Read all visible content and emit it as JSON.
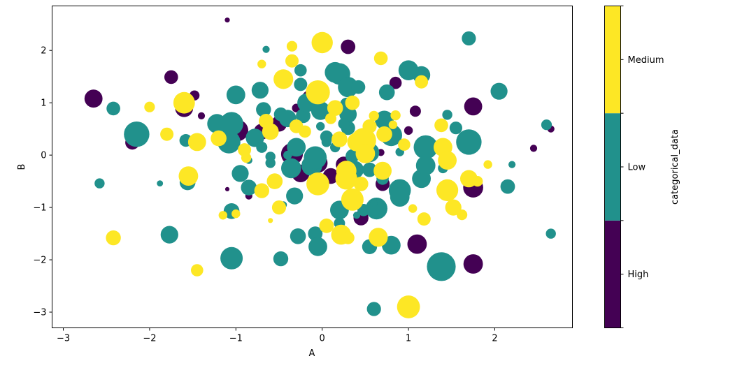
{
  "chart_data": {
    "type": "scatter",
    "title": "",
    "xlabel": "A",
    "ylabel": "B",
    "xlim": [
      -3.13,
      2.9
    ],
    "ylim": [
      -3.3,
      2.85
    ],
    "xticks": [
      -3,
      -2,
      -1,
      0,
      1,
      2
    ],
    "yticks": [
      -3,
      -2,
      -1,
      0,
      1,
      2
    ],
    "tick_labels": {
      "x": [
        "−3",
        "−2",
        "−1",
        "0",
        "1",
        "2"
      ],
      "y": [
        "−3",
        "−2",
        "−1",
        "0",
        "1",
        "2"
      ]
    },
    "grid": false,
    "colorbar": {
      "label": "categorical_data",
      "categories": [
        "High",
        "Low",
        "Medium"
      ],
      "colors": [
        "#440154",
        "#21918c",
        "#fde725"
      ]
    },
    "point_fields": [
      "x",
      "y",
      "category",
      "size"
    ],
    "size_note": "marker area, relative units",
    "points": [
      [
        -2.65,
        1.08,
        0,
        260
      ],
      [
        -2.2,
        0.24,
        0,
        160
      ],
      [
        -1.75,
        1.49,
        0,
        150
      ],
      [
        -1.6,
        0.9,
        0,
        260
      ],
      [
        -1.4,
        0.75,
        0,
        40
      ],
      [
        -1.1,
        2.58,
        0,
        20
      ],
      [
        -1.1,
        -0.65,
        0,
        15
      ],
      [
        -0.98,
        0.47,
        0,
        360
      ],
      [
        -0.7,
        0.45,
        0,
        200
      ],
      [
        -0.5,
        0.6,
        0,
        200
      ],
      [
        -0.35,
        0.02,
        0,
        380
      ],
      [
        -0.25,
        -0.35,
        0,
        250
      ],
      [
        -0.15,
        1.1,
        0,
        160
      ],
      [
        -0.05,
        -0.15,
        0,
        300
      ],
      [
        0.1,
        -0.4,
        0,
        200
      ],
      [
        0.3,
        2.07,
        0,
        170
      ],
      [
        0.35,
        -0.3,
        0,
        300
      ],
      [
        0.45,
        -1.2,
        0,
        180
      ],
      [
        0.5,
        0.25,
        0,
        120
      ],
      [
        0.7,
        -0.55,
        0,
        160
      ],
      [
        0.85,
        1.38,
        0,
        120
      ],
      [
        1.0,
        1.6,
        0,
        200
      ],
      [
        1.0,
        0.47,
        0,
        60
      ],
      [
        1.08,
        0.84,
        0,
        100
      ],
      [
        1.1,
        -1.7,
        0,
        300
      ],
      [
        1.75,
        0.93,
        0,
        260
      ],
      [
        1.75,
        -0.62,
        0,
        320
      ],
      [
        1.75,
        -2.08,
        0,
        300
      ],
      [
        2.45,
        0.13,
        0,
        40
      ],
      [
        2.65,
        0.5,
        0,
        40
      ],
      [
        -1.48,
        1.14,
        0,
        80
      ],
      [
        -0.3,
        0.9,
        0,
        60
      ],
      [
        0.25,
        -0.18,
        0,
        200
      ],
      [
        -0.85,
        -0.78,
        0,
        40
      ],
      [
        0.68,
        0.05,
        0,
        40
      ],
      [
        -2.42,
        0.89,
        1,
        150
      ],
      [
        -2.58,
        -0.54,
        1,
        80
      ],
      [
        -2.15,
        0.4,
        1,
        520
      ],
      [
        -1.6,
        1.03,
        1,
        240
      ],
      [
        -1.58,
        0.28,
        1,
        130
      ],
      [
        -1.56,
        -0.52,
        1,
        200
      ],
      [
        -1.77,
        -1.52,
        1,
        250
      ],
      [
        -1.88,
        -0.54,
        1,
        30
      ],
      [
        -1.22,
        0.6,
        1,
        300
      ],
      [
        -1.05,
        0.6,
        1,
        440
      ],
      [
        -1.08,
        0.25,
        1,
        420
      ],
      [
        -1.0,
        1.15,
        1,
        280
      ],
      [
        -0.95,
        -0.35,
        1,
        230
      ],
      [
        -1.05,
        -1.07,
        1,
        200
      ],
      [
        -1.05,
        -1.97,
        1,
        400
      ],
      [
        -0.85,
        -0.62,
        1,
        200
      ],
      [
        -0.72,
        1.24,
        1,
        230
      ],
      [
        -0.78,
        0.33,
        1,
        270
      ],
      [
        -0.68,
        0.87,
        1,
        180
      ],
      [
        -0.65,
        2.02,
        1,
        40
      ],
      [
        -0.6,
        -0.15,
        1,
        80
      ],
      [
        -0.6,
        -0.03,
        1,
        80
      ],
      [
        -0.48,
        -1.98,
        1,
        180
      ],
      [
        -0.48,
        0.78,
        1,
        150
      ],
      [
        -0.4,
        0.7,
        1,
        240
      ],
      [
        -0.3,
        0.15,
        1,
        280
      ],
      [
        -0.36,
        -0.25,
        1,
        320
      ],
      [
        -0.32,
        -0.78,
        1,
        230
      ],
      [
        -0.28,
        -1.55,
        1,
        200
      ],
      [
        -0.25,
        1.62,
        1,
        120
      ],
      [
        -0.25,
        1.35,
        1,
        140
      ],
      [
        -0.22,
        0.75,
        1,
        170
      ],
      [
        -0.18,
        1.0,
        1,
        280
      ],
      [
        -0.12,
        -0.2,
        1,
        340
      ],
      [
        -0.08,
        -0.05,
        1,
        420
      ],
      [
        -0.08,
        -1.5,
        1,
        170
      ],
      [
        -0.05,
        -1.75,
        1,
        280
      ],
      [
        -0.02,
        0.85,
        1,
        280
      ],
      [
        0.05,
        0.35,
        1,
        130
      ],
      [
        0.1,
        0.85,
        1,
        150
      ],
      [
        0.15,
        1.58,
        1,
        340
      ],
      [
        0.2,
        1.55,
        1,
        370
      ],
      [
        0.2,
        -1.05,
        1,
        280
      ],
      [
        0.2,
        -1.3,
        1,
        100
      ],
      [
        0.28,
        0.98,
        1,
        120
      ],
      [
        0.3,
        1.3,
        1,
        330
      ],
      [
        0.3,
        0.78,
        1,
        240
      ],
      [
        0.3,
        0.52,
        1,
        160
      ],
      [
        0.35,
        -0.02,
        1,
        150
      ],
      [
        0.38,
        -0.28,
        1,
        250
      ],
      [
        0.42,
        1.3,
        1,
        150
      ],
      [
        0.48,
        -1.05,
        1,
        120
      ],
      [
        0.5,
        0.33,
        1,
        170
      ],
      [
        0.55,
        0.05,
        1,
        300
      ],
      [
        0.55,
        -0.28,
        1,
        170
      ],
      [
        0.55,
        -1.75,
        1,
        180
      ],
      [
        0.6,
        -2.94,
        1,
        160
      ],
      [
        0.63,
        -1.02,
        1,
        380
      ],
      [
        0.72,
        0.67,
        1,
        280
      ],
      [
        0.7,
        -0.45,
        1,
        120
      ],
      [
        0.75,
        1.2,
        1,
        200
      ],
      [
        0.8,
        0.38,
        1,
        380
      ],
      [
        0.8,
        -1.72,
        1,
        280
      ],
      [
        0.9,
        0.06,
        1,
        60
      ],
      [
        0.9,
        -0.67,
        1,
        390
      ],
      [
        0.9,
        -0.8,
        1,
        300
      ],
      [
        1.15,
        1.53,
        1,
        250
      ],
      [
        1.15,
        -0.45,
        1,
        280
      ],
      [
        1.2,
        0.15,
        1,
        460
      ],
      [
        1.2,
        -0.2,
        1,
        300
      ],
      [
        1.45,
        0.77,
        1,
        80
      ],
      [
        1.55,
        0.52,
        1,
        130
      ],
      [
        1.7,
        2.23,
        1,
        160
      ],
      [
        1.7,
        0.25,
        1,
        520
      ],
      [
        2.05,
        1.22,
        1,
        230
      ],
      [
        2.15,
        -0.6,
        1,
        170
      ],
      [
        2.2,
        -0.18,
        1,
        40
      ],
      [
        2.6,
        0.58,
        1,
        90
      ],
      [
        2.65,
        -1.5,
        1,
        80
      ],
      [
        1.38,
        -2.13,
        1,
        660
      ],
      [
        1.0,
        1.62,
        1,
        320
      ],
      [
        -0.45,
        -0.95,
        1,
        40
      ],
      [
        0.4,
        -1.15,
        1,
        40
      ],
      [
        0.6,
        -0.92,
        1,
        40
      ],
      [
        1.4,
        -0.25,
        1,
        80
      ],
      [
        -0.85,
        -0.1,
        1,
        40
      ],
      [
        0.15,
        0.15,
        1,
        80
      ],
      [
        -0.4,
        0.0,
        1,
        60
      ],
      [
        -0.02,
        0.55,
        1,
        60
      ],
      [
        0.25,
        0.6,
        1,
        100
      ],
      [
        -0.7,
        0.15,
        1,
        100
      ],
      [
        0.05,
        0.25,
        1,
        80
      ],
      [
        -2.42,
        -1.58,
        2,
        180
      ],
      [
        -1.8,
        0.4,
        2,
        140
      ],
      [
        -1.6,
        1.0,
        2,
        370
      ],
      [
        -1.55,
        -0.4,
        2,
        300
      ],
      [
        -1.45,
        0.25,
        2,
        260
      ],
      [
        -1.45,
        -2.2,
        2,
        120
      ],
      [
        -2.0,
        0.92,
        2,
        90
      ],
      [
        -1.2,
        0.32,
        2,
        200
      ],
      [
        -1.0,
        -1.12,
        2,
        60
      ],
      [
        -0.88,
        -0.05,
        2,
        80
      ],
      [
        -0.7,
        1.74,
        2,
        60
      ],
      [
        -0.7,
        -0.68,
        2,
        180
      ],
      [
        -0.65,
        0.65,
        2,
        170
      ],
      [
        -0.6,
        0.45,
        2,
        220
      ],
      [
        -0.55,
        -0.5,
        2,
        200
      ],
      [
        -0.5,
        -1.0,
        2,
        160
      ],
      [
        -0.45,
        1.45,
        2,
        310
      ],
      [
        -0.35,
        1.8,
        2,
        140
      ],
      [
        -0.35,
        2.08,
        2,
        90
      ],
      [
        -0.3,
        0.55,
        2,
        150
      ],
      [
        -0.05,
        1.2,
        2,
        460
      ],
      [
        -0.05,
        -0.55,
        2,
        420
      ],
      [
        0.0,
        2.15,
        2,
        360
      ],
      [
        0.05,
        -1.35,
        2,
        170
      ],
      [
        0.15,
        0.9,
        2,
        200
      ],
      [
        0.2,
        0.3,
        2,
        200
      ],
      [
        0.22,
        -1.52,
        2,
        320
      ],
      [
        0.28,
        -0.3,
        2,
        330
      ],
      [
        0.28,
        -0.45,
        2,
        380
      ],
      [
        0.3,
        -1.58,
        2,
        130
      ],
      [
        0.35,
        1.0,
        2,
        170
      ],
      [
        0.35,
        -0.85,
        2,
        400
      ],
      [
        0.4,
        0.25,
        2,
        280
      ],
      [
        0.45,
        -0.55,
        2,
        170
      ],
      [
        0.48,
        0.28,
        2,
        500
      ],
      [
        0.5,
        0.03,
        2,
        300
      ],
      [
        0.55,
        0.55,
        2,
        160
      ],
      [
        0.65,
        -1.57,
        2,
        290
      ],
      [
        0.68,
        1.85,
        2,
        150
      ],
      [
        0.72,
        0.4,
        2,
        200
      ],
      [
        0.7,
        -0.3,
        2,
        260
      ],
      [
        0.85,
        0.76,
        2,
        80
      ],
      [
        1.0,
        -2.9,
        2,
        420
      ],
      [
        1.05,
        -1.02,
        2,
        60
      ],
      [
        1.15,
        1.4,
        2,
        140
      ],
      [
        1.18,
        -1.22,
        2,
        140
      ],
      [
        1.38,
        0.57,
        2,
        150
      ],
      [
        1.4,
        0.15,
        2,
        280
      ],
      [
        1.45,
        -0.67,
        2,
        380
      ],
      [
        1.45,
        -0.1,
        2,
        280
      ],
      [
        1.52,
        -1.0,
        2,
        210
      ],
      [
        1.62,
        -1.14,
        2,
        90
      ],
      [
        1.7,
        -0.45,
        2,
        240
      ],
      [
        1.8,
        -0.5,
        2,
        90
      ],
      [
        1.92,
        -0.18,
        2,
        60
      ],
      [
        -0.9,
        0.1,
        2,
        140
      ],
      [
        -0.6,
        -1.25,
        2,
        20
      ],
      [
        0.82,
        0.58,
        2,
        60
      ],
      [
        -0.2,
        0.45,
        2,
        120
      ],
      [
        0.1,
        0.7,
        2,
        100
      ],
      [
        0.6,
        0.75,
        2,
        80
      ],
      [
        -1.15,
        -1.15,
        2,
        60
      ],
      [
        0.95,
        0.2,
        2,
        120
      ]
    ]
  }
}
